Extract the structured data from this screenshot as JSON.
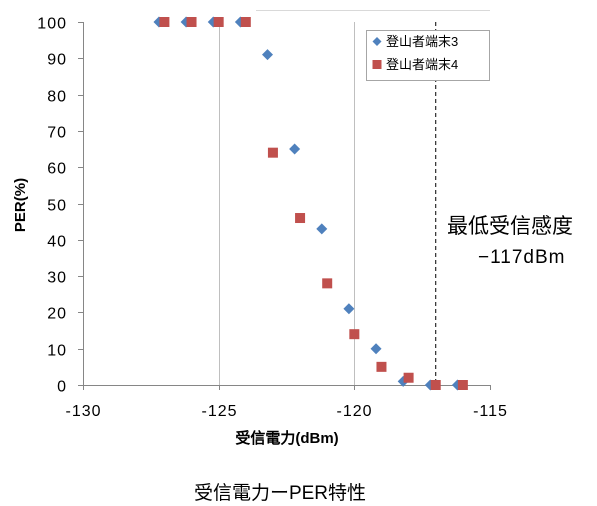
{
  "chart_data": {
    "type": "scatter",
    "xlabel": "受信電力(dBm)",
    "ylabel": "PER(%)",
    "xlim": [
      -130,
      -115
    ],
    "ylim": [
      0,
      100
    ],
    "x_ticks": [
      -130,
      -125,
      -120,
      -115
    ],
    "y_ticks": [
      0,
      10,
      20,
      30,
      40,
      50,
      60,
      70,
      80,
      90,
      100
    ],
    "grid": "vertical",
    "legend_position": "top-right",
    "series": [
      {
        "name": "登山者端末3",
        "marker": "diamond",
        "color": "#4F81BD",
        "x": [
          -127.2,
          -126.2,
          -125.2,
          -124.2,
          -123.2,
          -122.2,
          -121.2,
          -120.2,
          -119.2,
          -118.2,
          -117.2,
          -116.2
        ],
        "y": [
          100,
          100,
          100,
          100,
          91,
          65,
          43,
          21,
          10,
          1,
          0,
          0
        ]
      },
      {
        "name": "登山者端末4",
        "marker": "square",
        "color": "#C0504D",
        "x": [
          -127,
          -126,
          -125,
          -124,
          -123,
          -122,
          -121,
          -120,
          -119,
          -118,
          -117,
          -116
        ],
        "y": [
          100,
          100,
          100,
          100,
          64,
          46,
          28,
          14,
          5,
          2,
          0,
          0
        ]
      }
    ],
    "annotation": {
      "line_x": -117,
      "line_style": "dashed",
      "label": "最低受信感度",
      "value": "−117dBm"
    },
    "caption": "受信電力ーPER特性"
  }
}
